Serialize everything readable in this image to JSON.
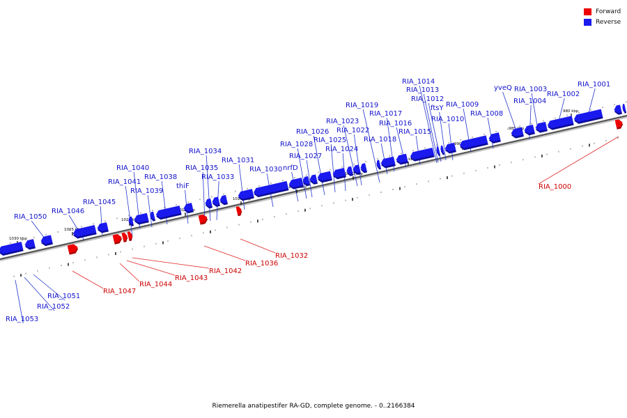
{
  "legend": {
    "forward": {
      "label": "Forward",
      "color": "#ee0000"
    },
    "reverse": {
      "label": "Reverse",
      "color": "#1a1aee"
    }
  },
  "caption": "Riemerella anatipestifer RA-GD, complete genome. - 0..2166384",
  "colors": {
    "forward": "#ee0000",
    "reverse": "#1a1aee",
    "line_forward": "#dd2222",
    "line_reverse": "#2233cc"
  },
  "ticks": [
    "1030 kbp",
    "1025 kbp",
    "1020 kbp",
    "1015 kbp",
    "1010 kbp",
    "1005 kbp",
    "1000 kbp",
    "995 kbp",
    "990 kbp",
    "985 kbp",
    "980 kbp"
  ],
  "reverse_genes": [
    "RIA_1001",
    "RIA_1002",
    "RIA_1003",
    "yveQ",
    "RIA_1004",
    "RIA_1008",
    "RIA_1009",
    "RIA_1010",
    "ftsY",
    "RIA_1012",
    "RIA_1013",
    "RIA_1014",
    "RIA_1015",
    "RIA_1016",
    "RIA_1017",
    "RIA_1018",
    "RIA_1019",
    "RIA_1022",
    "RIA_1023",
    "RIA_1024",
    "RIA_1025",
    "RIA_1026",
    "RIA_1027",
    "RIA_1028",
    "nrfD",
    "RIA_1030",
    "RIA_1031",
    "RIA_1033",
    "RIA_1034",
    "RIA_1035",
    "thiF",
    "RIA_1038",
    "RIA_1039",
    "RIA_1040",
    "RIA_1041",
    "RIA_1045",
    "RIA_1046",
    "RIA_1050",
    "RIA_1051",
    "RIA_1052",
    "RIA_1053"
  ],
  "forward_genes": [
    "RIA_1000",
    "RIA_1032",
    "RIA_1036",
    "RIA_1042",
    "RIA_1043",
    "RIA_1044",
    "RIA_1047"
  ]
}
